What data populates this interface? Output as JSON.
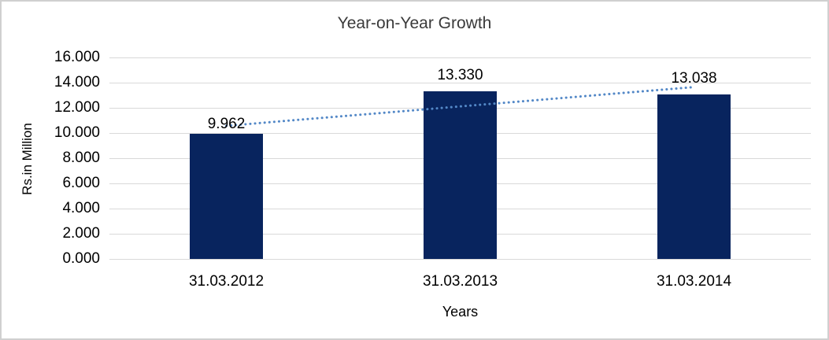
{
  "chart_data": {
    "type": "bar",
    "title": "Year-on-Year Growth",
    "xlabel": "Years",
    "ylabel": "Rs.in Million",
    "categories": [
      "31.03.2012",
      "31.03.2013",
      "31.03.2014"
    ],
    "values": [
      9962,
      13330,
      13038
    ],
    "data_labels": [
      "9.962",
      "13.330",
      "13.038"
    ],
    "ylim": [
      0,
      16000
    ],
    "ytick_step": 2000,
    "ytick_labels": [
      "0.000",
      "2.000",
      "4.000",
      "6.000",
      "8.000",
      "10.000",
      "12.000",
      "14.000",
      "16.000"
    ],
    "grid": true,
    "legend": "none",
    "trendline": {
      "kind": "linear",
      "style": "dotted",
      "color": "#5388c7"
    },
    "colors": {
      "bar": "#08245e",
      "gridline": "#d9d9d9",
      "frame_border": "#d0d0d0",
      "axis_text": "#000000",
      "title_text": "#3a3a3a"
    }
  }
}
